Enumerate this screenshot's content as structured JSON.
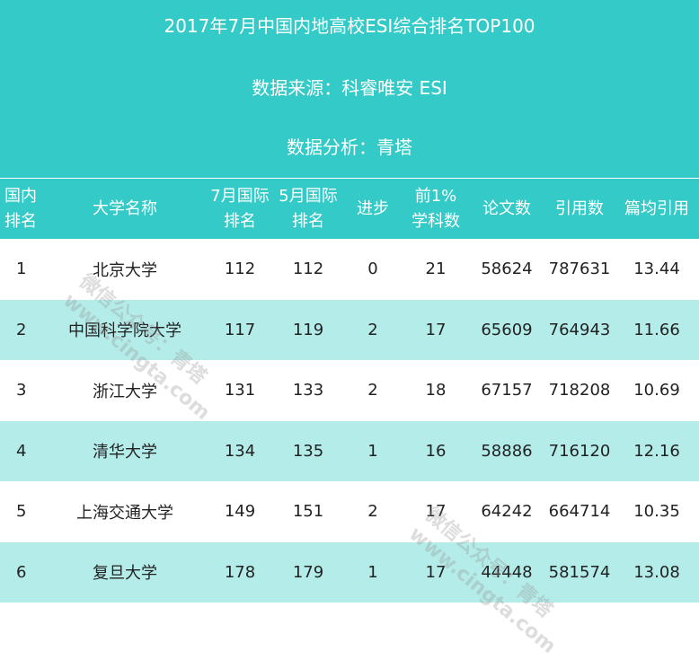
{
  "banner": {
    "title": "2017年7月中国内地高校ESI综合排名TOP100",
    "source": "数据来源：科睿唯安 ESI",
    "analysis": "数据分析：青塔"
  },
  "colors": {
    "teal": "#34cac7",
    "row_alt": "#b4ece9",
    "row_plain": "#ffffff"
  },
  "table": {
    "headers": [
      [
        "国内",
        "排名"
      ],
      [
        "大学名称"
      ],
      [
        "7月国际",
        "排名"
      ],
      [
        "5月国际",
        "排名"
      ],
      [
        "进步"
      ],
      [
        "前1%",
        "学科数"
      ],
      [
        "论文数"
      ],
      [
        "引用数"
      ],
      [
        "篇均引用"
      ]
    ],
    "rows": [
      [
        "1",
        "北京大学",
        "112",
        "112",
        "0",
        "21",
        "58624",
        "787631",
        "13.44"
      ],
      [
        "2",
        "中国科学院大学",
        "117",
        "119",
        "2",
        "17",
        "65609",
        "764943",
        "11.66"
      ],
      [
        "3",
        "浙江大学",
        "131",
        "133",
        "2",
        "18",
        "67157",
        "718208",
        "10.69"
      ],
      [
        "4",
        "清华大学",
        "134",
        "135",
        "1",
        "16",
        "58886",
        "716120",
        "12.16"
      ],
      [
        "5",
        "上海交通大学",
        "149",
        "151",
        "2",
        "17",
        "64242",
        "664714",
        "10.35"
      ],
      [
        "6",
        "复旦大学",
        "178",
        "179",
        "1",
        "17",
        "44448",
        "581574",
        "13.08"
      ]
    ]
  },
  "watermarks": [
    {
      "line1": "微信公众号：青塔",
      "line2": "www.cingta.com"
    },
    {
      "line1": "微信公众号：青塔",
      "line2": "www.cingta.com"
    }
  ]
}
